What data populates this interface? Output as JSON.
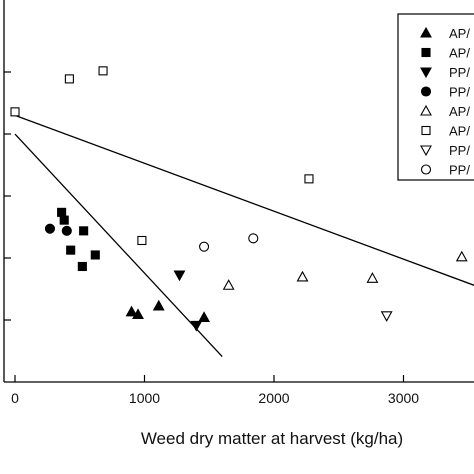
{
  "chart_data": {
    "type": "scatter",
    "xlabel": "Weed dry matter at harvest (kg/ha)",
    "ylabel": "",
    "xlim": [
      0,
      3500
    ],
    "x_ticks": [
      0,
      1000,
      2000,
      3000
    ],
    "x_tick_labels": [
      "0",
      "1000",
      "2000",
      "3000"
    ],
    "y_tick_count": 5,
    "grid": false,
    "legend_position": "top-right",
    "colors": {
      "marker": "#000000",
      "line": "#000000"
    },
    "series": [
      {
        "name": "AP/",
        "marker": "triangle-up-filled",
        "points": [
          [
            900,
            0.262
          ],
          [
            950,
            0.252
          ],
          [
            1110,
            0.284
          ],
          [
            1460,
            0.241
          ]
        ]
      },
      {
        "name": "AP/",
        "marker": "square-filled",
        "points": [
          [
            360,
            0.633
          ],
          [
            380,
            0.604
          ],
          [
            430,
            0.492
          ],
          [
            530,
            0.564
          ],
          [
            520,
            0.431
          ],
          [
            620,
            0.474
          ]
        ]
      },
      {
        "name": "PP/",
        "marker": "triangle-down-filled",
        "points": [
          [
            1270,
            0.399
          ],
          [
            1400,
            0.211
          ]
        ]
      },
      {
        "name": "PP/",
        "marker": "circle-filled",
        "points": [
          [
            270,
            0.572
          ],
          [
            400,
            0.564
          ]
        ]
      },
      {
        "name": "AP/",
        "marker": "triangle-up-open",
        "points": [
          [
            1650,
            0.361
          ],
          [
            2220,
            0.392
          ],
          [
            2760,
            0.387
          ],
          [
            3450,
            0.467
          ]
        ]
      },
      {
        "name": "AP/",
        "marker": "square-open",
        "points": [
          [
            0,
            1.008
          ],
          [
            420,
            1.131
          ],
          [
            680,
            1.161
          ],
          [
            980,
            0.528
          ],
          [
            2270,
            0.758
          ]
        ]
      },
      {
        "name": "PP/",
        "marker": "triangle-down-open",
        "points": [
          [
            2870,
            0.247
          ]
        ]
      },
      {
        "name": "PP/",
        "marker": "circle-open",
        "points": [
          [
            1460,
            0.505
          ],
          [
            1840,
            0.536
          ]
        ]
      }
    ],
    "lines": [
      {
        "x": [
          0,
          3550
        ],
        "y": [
          0.995,
          0.36
        ]
      },
      {
        "x": [
          0,
          1600
        ],
        "y": [
          0.925,
          0.095
        ]
      }
    ]
  }
}
